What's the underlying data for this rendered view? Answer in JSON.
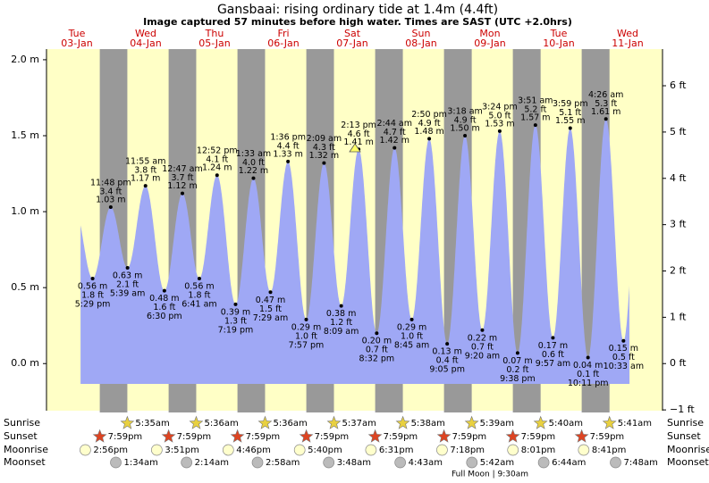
{
  "chart_data": {
    "type": "tide",
    "title": "Gansbaai: rising  ordinary tide at 1.4m (4.4ft)",
    "subtitle": "Image captured 57 minutes before high water. Times are SAST (UTC +2.0hrs)",
    "ylim": [
      -0.31,
      2.07
    ],
    "y2lim": [
      -1.017,
      6.791
    ],
    "yticks": [
      {
        "value": 2,
        "label": "2.0 m"
      },
      {
        "value": 1.5,
        "label": "1.5 m"
      },
      {
        "value": 1,
        "label": "1.0 m"
      },
      {
        "value": 0.5,
        "label": "0.5 m"
      },
      {
        "value": 0,
        "label": "0.0 m"
      }
    ],
    "y2ticks": [
      {
        "value": 6,
        "label": "6 ft"
      },
      {
        "value": 5,
        "label": "5 ft"
      },
      {
        "value": 4,
        "label": "4 ft"
      },
      {
        "value": 3,
        "label": "3 ft"
      },
      {
        "value": 2,
        "label": "2 ft"
      },
      {
        "value": 1,
        "label": "1 ft"
      },
      {
        "value": 0,
        "label": "0 ft"
      },
      {
        "value": -1,
        "label": "−1 ft"
      }
    ],
    "colors": {
      "day": "#ffffc6",
      "night": "#999999",
      "water": "#9fa8f5",
      "dates": "#cc0000"
    },
    "rows": [
      "Sunrise",
      "Sunset",
      "Moonrise",
      "Moonset"
    ],
    "days": [
      {
        "dow": "Tue",
        "date": "03-Jan",
        "extremes": [
          {
            "time": "5:29 pm",
            "value": 0.56,
            "label": "0.56 m",
            "ft": "1.8 ft"
          },
          {
            "time": "11:48 pm",
            "value": 1.03,
            "label": "1.03 m",
            "ft": "3.4 ft"
          }
        ],
        "sunset": "7:59pm",
        "moonrise": "2:56pm"
      },
      {
        "dow": "Wed",
        "date": "04-Jan",
        "extremes": [
          {
            "time": "5:39 am",
            "value": 0.63,
            "label": "0.63 m",
            "ft": "2.1 ft"
          },
          {
            "time": "11:55 am",
            "value": 1.17,
            "label": "1.17 m",
            "ft": "3.8 ft"
          },
          {
            "time": "6:30 pm",
            "value": 0.48,
            "label": "0.48 m",
            "ft": "1.6 ft"
          }
        ],
        "sunrise": "5:35am",
        "sunset": "7:59pm",
        "moonrise": "3:51pm",
        "moonset": "1:34am"
      },
      {
        "dow": "Thu",
        "date": "05-Jan",
        "extremes": [
          {
            "time": "12:47 am",
            "value": 1.12,
            "label": "1.12 m",
            "ft": "3.7 ft"
          },
          {
            "time": "6:41 am",
            "value": 0.56,
            "label": "0.56 m",
            "ft": "1.8 ft"
          },
          {
            "time": "12:52 pm",
            "value": 1.24,
            "label": "1.24 m",
            "ft": "4.1 ft"
          },
          {
            "time": "7:19 pm",
            "value": 0.39,
            "label": "0.39 m",
            "ft": "1.3 ft"
          }
        ],
        "sunrise": "5:36am",
        "sunset": "7:59pm",
        "moonrise": "4:46pm",
        "moonset": "2:14am"
      },
      {
        "dow": "Fri",
        "date": "06-Jan",
        "extremes": [
          {
            "time": "1:33 am",
            "value": 1.22,
            "label": "1.22 m",
            "ft": "4.0 ft"
          },
          {
            "time": "7:29 am",
            "value": 0.47,
            "label": "0.47 m",
            "ft": "1.5 ft"
          },
          {
            "time": "1:36 pm",
            "value": 1.33,
            "label": "1.33 m",
            "ft": "4.4 ft"
          },
          {
            "time": "7:57 pm",
            "value": 0.29,
            "label": "0.29 m",
            "ft": "1.0 ft"
          }
        ],
        "sunrise": "5:36am",
        "sunset": "7:59pm",
        "moonrise": "5:40pm",
        "moonset": "2:58am"
      },
      {
        "dow": "Sat",
        "date": "07-Jan",
        "extremes": [
          {
            "time": "2:09 am",
            "value": 1.32,
            "label": "1.32 m",
            "ft": "4.3 ft"
          },
          {
            "time": "8:09 am",
            "value": 0.38,
            "label": "0.38 m",
            "ft": "1.2 ft"
          },
          {
            "time": "2:13 pm",
            "value": 1.41,
            "label": "1.41 m",
            "ft": "4.6 ft"
          },
          {
            "time": "8:32 pm",
            "value": 0.2,
            "label": "0.20 m",
            "ft": "0.7 ft"
          }
        ],
        "sunrise": "5:37am",
        "sunset": "7:59pm",
        "moonrise": "6:31pm",
        "moonset": "3:48am"
      },
      {
        "dow": "Sun",
        "date": "08-Jan",
        "extremes": [
          {
            "time": "2:44 am",
            "value": 1.42,
            "label": "1.42 m",
            "ft": "4.7 ft"
          },
          {
            "time": "8:45 am",
            "value": 0.29,
            "label": "0.29 m",
            "ft": "1.0 ft"
          },
          {
            "time": "2:50 pm",
            "value": 1.48,
            "label": "1.48 m",
            "ft": "4.9 ft"
          },
          {
            "time": "9:05 pm",
            "value": 0.13,
            "label": "0.13 m",
            "ft": "0.4 ft"
          }
        ],
        "sunrise": "5:38am",
        "sunset": "7:59pm",
        "moonrise": "7:18pm",
        "moonset": "4:43am"
      },
      {
        "dow": "Mon",
        "date": "09-Jan",
        "extremes": [
          {
            "time": "3:18 am",
            "value": 1.5,
            "label": "1.50 m",
            "ft": "4.9 ft"
          },
          {
            "time": "9:20 am",
            "value": 0.22,
            "label": "0.22 m",
            "ft": "0.7 ft"
          },
          {
            "time": "3:24 pm",
            "value": 1.53,
            "label": "1.53 m",
            "ft": "5.0 ft"
          },
          {
            "time": "9:38 pm",
            "value": 0.07,
            "label": "0.07 m",
            "ft": "0.2 ft"
          }
        ],
        "sunrise": "5:39am",
        "sunset": "7:59pm",
        "moonrise": "8:01pm",
        "moonset": "5:42am",
        "full_moon": "Full Moon | 9:30am"
      },
      {
        "dow": "Tue",
        "date": "10-Jan",
        "extremes": [
          {
            "time": "3:51 am",
            "value": 1.57,
            "label": "1.57 m",
            "ft": "5.2 ft"
          },
          {
            "time": "9:57 am",
            "value": 0.17,
            "label": "0.17 m",
            "ft": "0.6 ft"
          },
          {
            "time": "3:59 pm",
            "value": 1.55,
            "label": "1.55 m",
            "ft": "5.1 ft"
          },
          {
            "time": "10:11 pm",
            "value": 0.04,
            "label": "0.04 m",
            "ft": "0.1 ft"
          }
        ],
        "sunrise": "5:40am",
        "sunset": "7:59pm",
        "moonrise": "8:41pm",
        "moonset": "6:44am"
      },
      {
        "dow": "Wed",
        "date": "11-Jan",
        "extremes": [
          {
            "time": "4:26 am",
            "value": 1.61,
            "label": "1.61 m",
            "ft": "5.3 ft"
          },
          {
            "time": "10:33 am",
            "value": 0.15,
            "label": "0.15 m",
            "ft": "0.5 ft"
          }
        ],
        "sunrise": "5:41am",
        "moonset": "7:48am"
      }
    ]
  }
}
